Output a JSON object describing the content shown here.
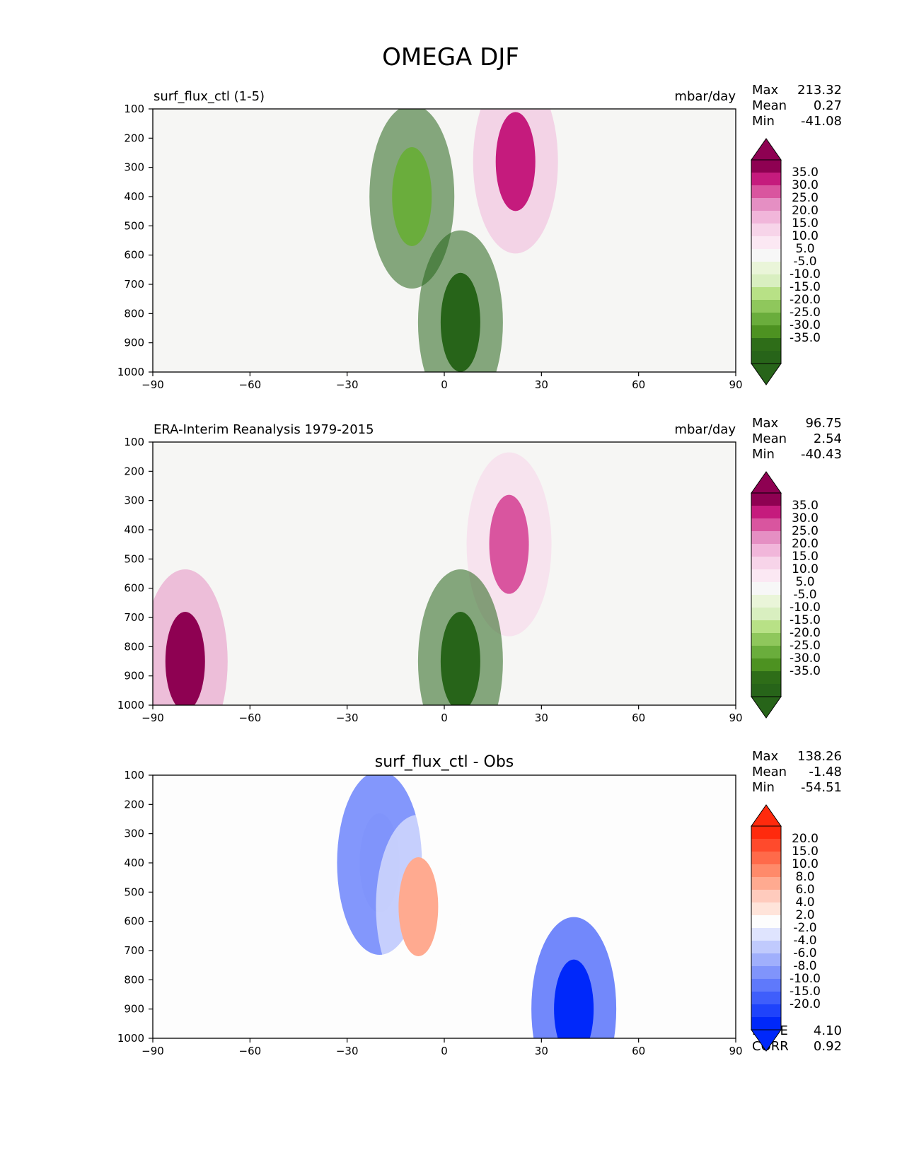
{
  "figure": {
    "title": "OMEGA DJF"
  },
  "chart_data": [
    {
      "type": "heatmap",
      "title": "surf_flux_ctl (1-5)",
      "units": "mbar/day",
      "stats": [
        {
          "label": "Max",
          "value": "213.32"
        },
        {
          "label": "Mean",
          "value": "0.27"
        },
        {
          "label": "Min",
          "value": "-41.08"
        }
      ],
      "x_ticks": [
        "−90",
        "−60",
        "−30",
        "0",
        "30",
        "60",
        "90"
      ],
      "y_ticks": [
        "100",
        "200",
        "300",
        "400",
        "500",
        "600",
        "700",
        "800",
        "900",
        "1000"
      ],
      "xlim": [
        -90,
        90
      ],
      "ylim": [
        1000,
        100
      ],
      "colorbar": {
        "labels": [
          "35.0",
          "30.0",
          "25.0",
          "20.0",
          "15.0",
          "10.0",
          "5.0",
          "-5.0",
          "-10.0",
          "-15.0",
          "-20.0",
          "-25.0",
          "-30.0",
          "-35.0"
        ],
        "colors": [
          "#8e0152",
          "#c51b7d",
          "#d9559f",
          "#e58fc3",
          "#f1b6da",
          "#f7d4e9",
          "#fbe8f3",
          "#f7f7f7",
          "#eaf5d9",
          "#d9efc0",
          "#b8e186",
          "#8fc75c",
          "#6aad3c",
          "#4d9221",
          "#2e6d18",
          "#276419"
        ],
        "extend": "both"
      },
      "features": [
        {
          "label": "positive core",
          "x": 22,
          "p": 280,
          "value": 30
        },
        {
          "label": "negative core",
          "x": 5,
          "p": 830,
          "value": -35
        },
        {
          "label": "negative band",
          "x": -10,
          "p": 400,
          "value": -20
        }
      ]
    },
    {
      "type": "heatmap",
      "title": "ERA-Interim Reanalysis 1979-2015",
      "units": "mbar/day",
      "stats": [
        {
          "label": "Max",
          "value": "96.75"
        },
        {
          "label": "Mean",
          "value": "2.54"
        },
        {
          "label": "Min",
          "value": "-40.43"
        }
      ],
      "x_ticks": [
        "−90",
        "−60",
        "−30",
        "0",
        "30",
        "60",
        "90"
      ],
      "y_ticks": [
        "100",
        "200",
        "300",
        "400",
        "500",
        "600",
        "700",
        "800",
        "900",
        "1000"
      ],
      "xlim": [
        -90,
        90
      ],
      "ylim": [
        1000,
        100
      ],
      "colorbar": {
        "labels": [
          "35.0",
          "30.0",
          "25.0",
          "20.0",
          "15.0",
          "10.0",
          "5.0",
          "-5.0",
          "-10.0",
          "-15.0",
          "-20.0",
          "-25.0",
          "-30.0",
          "-35.0"
        ],
        "colors": [
          "#8e0152",
          "#c51b7d",
          "#d9559f",
          "#e58fc3",
          "#f1b6da",
          "#f7d4e9",
          "#fbe8f3",
          "#f7f7f7",
          "#eaf5d9",
          "#d9efc0",
          "#b8e186",
          "#8fc75c",
          "#6aad3c",
          "#4d9221",
          "#2e6d18",
          "#276419"
        ],
        "extend": "both"
      },
      "features": [
        {
          "label": "positive core",
          "x": 20,
          "p": 450,
          "value": 25
        },
        {
          "label": "negative core",
          "x": 5,
          "p": 850,
          "value": -35
        },
        {
          "label": "polar maximum",
          "x": -80,
          "p": 850,
          "value": 35
        }
      ]
    },
    {
      "type": "heatmap",
      "title": "surf_flux_ctl - Obs",
      "units": "",
      "stats": [
        {
          "label": "Max",
          "value": "138.26"
        },
        {
          "label": "Mean",
          "value": "-1.48"
        },
        {
          "label": "Min",
          "value": "-54.51"
        }
      ],
      "extra_stats": [
        {
          "label": "RMSE",
          "value": "4.10"
        },
        {
          "label": "CORR",
          "value": "0.92"
        }
      ],
      "x_ticks": [
        "−90",
        "−60",
        "−30",
        "0",
        "30",
        "60",
        "90"
      ],
      "y_ticks": [
        "100",
        "200",
        "300",
        "400",
        "500",
        "600",
        "700",
        "800",
        "900",
        "1000"
      ],
      "xlim": [
        -90,
        90
      ],
      "ylim": [
        1000,
        100
      ],
      "colorbar": {
        "labels": [
          "20.0",
          "15.0",
          "10.0",
          "8.0",
          "6.0",
          "4.0",
          "2.0",
          "-2.0",
          "-4.0",
          "-6.0",
          "-8.0",
          "-10.0",
          "-15.0",
          "-20.0"
        ],
        "colors": [
          "#ff2a0d",
          "#ff4a2c",
          "#ff6a4a",
          "#ff8a6a",
          "#ffaa90",
          "#ffcbbd",
          "#ffe4da",
          "#fdfdfd",
          "#dfe4fe",
          "#c0cafd",
          "#a0affc",
          "#8094fb",
          "#5f79fb",
          "#3f5efb",
          "#1f43fb",
          "#0028fa"
        ],
        "extend": "both"
      },
      "features": [
        {
          "label": "negative band",
          "x": -20,
          "p": 400,
          "value": -8
        },
        {
          "label": "positive band",
          "x": -8,
          "p": 550,
          "value": 6
        },
        {
          "label": "negative lower",
          "x": 40,
          "p": 900,
          "value": -20
        }
      ]
    }
  ]
}
